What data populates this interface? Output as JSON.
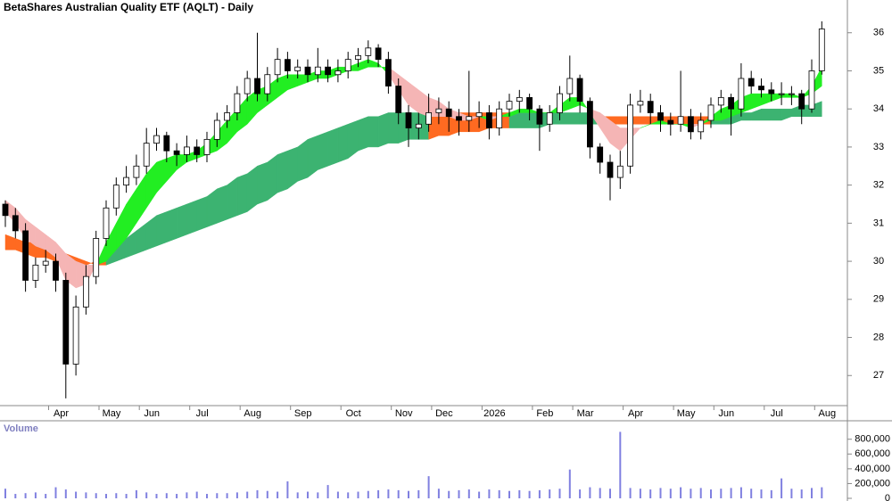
{
  "chart_data": {
    "type": "candlestick",
    "title": "BetaShares Australian Quality ETF (AQLT) - Daily",
    "volume_title": "Volume",
    "categories": [
      null,
      null,
      null,
      null,
      null,
      "Apr",
      null,
      null,
      null,
      null,
      "May",
      null,
      null,
      null,
      "Jun",
      null,
      null,
      null,
      null,
      "Jul",
      null,
      null,
      null,
      null,
      "Aug",
      null,
      null,
      null,
      null,
      "Sep",
      null,
      null,
      null,
      null,
      "Oct",
      null,
      null,
      null,
      null,
      "Nov",
      null,
      null,
      null,
      "Dec",
      null,
      null,
      null,
      null,
      "2026",
      null,
      null,
      null,
      null,
      "Feb",
      null,
      null,
      null,
      "Mar",
      null,
      null,
      null,
      null,
      "Apr",
      null,
      null,
      null,
      null,
      "May",
      null,
      null,
      null,
      "Jun",
      null,
      null,
      null,
      null,
      "Jul",
      null,
      null,
      null,
      null,
      "Aug"
    ],
    "ohlc": [
      [
        31.5,
        31.6,
        30.9,
        31.2
      ],
      [
        31.2,
        31.4,
        30.6,
        30.8
      ],
      [
        30.8,
        31.0,
        29.2,
        29.5
      ],
      [
        29.5,
        30.1,
        29.3,
        29.9
      ],
      [
        29.9,
        30.3,
        29.7,
        30.0
      ],
      [
        30.0,
        30.2,
        29.2,
        29.5
      ],
      [
        29.5,
        29.7,
        26.4,
        27.3
      ],
      [
        27.3,
        29.1,
        27.0,
        28.8
      ],
      [
        28.8,
        29.9,
        28.6,
        29.6
      ],
      [
        29.6,
        30.8,
        29.4,
        30.6
      ],
      [
        30.6,
        31.6,
        30.4,
        31.4
      ],
      [
        31.4,
        32.2,
        31.2,
        32.0
      ],
      [
        32.0,
        32.5,
        31.8,
        32.2
      ],
      [
        32.2,
        32.8,
        32.0,
        32.5
      ],
      [
        32.5,
        33.5,
        32.3,
        33.1
      ],
      [
        33.1,
        33.5,
        32.9,
        33.3
      ],
      [
        33.3,
        33.4,
        32.6,
        32.9
      ],
      [
        32.9,
        33.1,
        32.5,
        32.8
      ],
      [
        32.8,
        33.3,
        32.6,
        33.0
      ],
      [
        33.0,
        33.2,
        32.6,
        32.8
      ],
      [
        32.8,
        33.4,
        32.6,
        33.2
      ],
      [
        33.2,
        33.9,
        33.0,
        33.7
      ],
      [
        33.7,
        34.1,
        33.5,
        33.9
      ],
      [
        33.9,
        34.6,
        33.7,
        34.4
      ],
      [
        34.4,
        35.0,
        34.2,
        34.8
      ],
      [
        34.8,
        36.0,
        34.2,
        34.4
      ],
      [
        34.4,
        35.1,
        34.2,
        34.9
      ],
      [
        34.9,
        35.6,
        34.7,
        35.3
      ],
      [
        35.3,
        35.5,
        34.8,
        35.0
      ],
      [
        35.0,
        35.3,
        34.8,
        35.1
      ],
      [
        35.1,
        35.3,
        34.7,
        34.9
      ],
      [
        34.9,
        35.6,
        34.7,
        35.1
      ],
      [
        35.1,
        35.3,
        34.7,
        34.9
      ],
      [
        34.9,
        35.3,
        34.7,
        35.0
      ],
      [
        35.0,
        35.5,
        34.8,
        35.3
      ],
      [
        35.3,
        35.6,
        35.1,
        35.4
      ],
      [
        35.4,
        35.8,
        35.2,
        35.6
      ],
      [
        35.6,
        35.7,
        35.1,
        35.3
      ],
      [
        35.3,
        35.5,
        34.4,
        34.6
      ],
      [
        34.6,
        34.8,
        33.6,
        33.9
      ],
      [
        33.9,
        34.1,
        33.0,
        33.5
      ],
      [
        33.5,
        33.9,
        33.2,
        33.6
      ],
      [
        33.6,
        34.4,
        33.4,
        33.9
      ],
      [
        33.9,
        34.3,
        33.6,
        34.0
      ],
      [
        34.0,
        34.2,
        33.4,
        33.8
      ],
      [
        33.8,
        34.0,
        33.3,
        33.7
      ],
      [
        33.7,
        35.0,
        33.4,
        33.8
      ],
      [
        33.8,
        34.2,
        33.5,
        33.9
      ],
      [
        33.9,
        34.1,
        33.2,
        33.5
      ],
      [
        33.5,
        34.2,
        33.3,
        34.0
      ],
      [
        34.0,
        34.4,
        33.8,
        34.2
      ],
      [
        34.2,
        34.5,
        33.9,
        34.3
      ],
      [
        34.3,
        34.4,
        33.7,
        34.0
      ],
      [
        34.0,
        34.1,
        32.9,
        33.6
      ],
      [
        33.6,
        34.1,
        33.4,
        33.9
      ],
      [
        33.9,
        34.6,
        33.7,
        34.4
      ],
      [
        34.4,
        35.4,
        34.2,
        34.8
      ],
      [
        34.8,
        34.9,
        33.9,
        34.2
      ],
      [
        34.2,
        34.3,
        32.7,
        33.0
      ],
      [
        33.0,
        33.1,
        32.3,
        32.6
      ],
      [
        32.6,
        32.8,
        31.6,
        32.2
      ],
      [
        32.2,
        32.9,
        31.9,
        32.5
      ],
      [
        32.5,
        34.4,
        32.3,
        34.1
      ],
      [
        34.1,
        34.5,
        33.9,
        34.2
      ],
      [
        34.2,
        34.4,
        33.6,
        33.9
      ],
      [
        33.9,
        34.1,
        33.4,
        33.7
      ],
      [
        33.7,
        33.9,
        33.3,
        33.6
      ],
      [
        33.6,
        35.0,
        33.4,
        33.8
      ],
      [
        33.8,
        34.0,
        33.2,
        33.4
      ],
      [
        33.4,
        33.9,
        33.2,
        33.7
      ],
      [
        33.7,
        34.3,
        33.5,
        34.1
      ],
      [
        34.1,
        34.5,
        33.9,
        34.3
      ],
      [
        34.3,
        34.4,
        33.3,
        34.0
      ],
      [
        34.0,
        35.2,
        33.8,
        34.8
      ],
      [
        34.8,
        35.0,
        34.4,
        34.6
      ],
      [
        34.6,
        34.8,
        34.3,
        34.5
      ],
      [
        34.5,
        34.7,
        34.2,
        34.4
      ],
      [
        34.4,
        34.7,
        34.1,
        34.4
      ],
      [
        34.4,
        34.6,
        34.1,
        34.4
      ],
      [
        34.4,
        34.5,
        33.6,
        34.0
      ],
      [
        34.0,
        35.3,
        33.9,
        35.0
      ],
      [
        35.0,
        36.3,
        34.9,
        36.1
      ]
    ],
    "fast_band": [
      [
        31.3,
        31.6
      ],
      [
        31.0,
        31.4
      ],
      [
        30.6,
        31.1
      ],
      [
        30.4,
        30.9
      ],
      [
        30.3,
        30.7
      ],
      [
        30.1,
        30.5
      ],
      [
        29.5,
        30.2
      ],
      [
        29.3,
        30.0
      ],
      [
        29.4,
        29.9
      ],
      [
        29.9,
        29.9
      ],
      [
        30.5,
        30.0
      ],
      [
        31.0,
        30.3
      ],
      [
        31.5,
        30.6
      ],
      [
        31.9,
        31.0
      ],
      [
        32.3,
        31.4
      ],
      [
        32.6,
        31.8
      ],
      [
        32.7,
        32.1
      ],
      [
        32.8,
        32.4
      ],
      [
        32.8,
        32.6
      ],
      [
        32.9,
        32.7
      ],
      [
        33.1,
        32.8
      ],
      [
        33.4,
        32.9
      ],
      [
        33.7,
        33.1
      ],
      [
        34.0,
        33.4
      ],
      [
        34.3,
        33.6
      ],
      [
        34.5,
        33.9
      ],
      [
        34.6,
        34.1
      ],
      [
        34.8,
        34.3
      ],
      [
        34.9,
        34.5
      ],
      [
        34.9,
        34.6
      ],
      [
        34.9,
        34.7
      ],
      [
        35.0,
        34.8
      ],
      [
        35.0,
        34.8
      ],
      [
        35.1,
        34.9
      ],
      [
        35.1,
        35.0
      ],
      [
        35.2,
        35.0
      ],
      [
        35.3,
        35.1
      ],
      [
        35.2,
        35.1
      ],
      [
        34.9,
        35.1
      ],
      [
        34.5,
        34.9
      ],
      [
        34.1,
        34.7
      ],
      [
        33.9,
        34.5
      ],
      [
        33.8,
        34.3
      ],
      [
        33.8,
        34.2
      ],
      [
        33.8,
        34.0
      ],
      [
        33.7,
        33.9
      ],
      [
        33.7,
        33.8
      ],
      [
        33.8,
        33.8
      ],
      [
        33.7,
        33.8
      ],
      [
        33.8,
        33.8
      ],
      [
        33.9,
        33.8
      ],
      [
        34.0,
        33.9
      ],
      [
        34.0,
        33.9
      ],
      [
        33.9,
        33.9
      ],
      [
        33.9,
        33.9
      ],
      [
        34.1,
        33.9
      ],
      [
        34.3,
        34.0
      ],
      [
        34.3,
        34.1
      ],
      [
        33.9,
        34.0
      ],
      [
        33.5,
        33.9
      ],
      [
        33.1,
        33.7
      ],
      [
        32.9,
        33.5
      ],
      [
        33.2,
        33.5
      ],
      [
        33.5,
        33.5
      ],
      [
        33.6,
        33.6
      ],
      [
        33.7,
        33.6
      ],
      [
        33.6,
        33.6
      ],
      [
        33.6,
        33.6
      ],
      [
        33.5,
        33.6
      ],
      [
        33.6,
        33.6
      ],
      [
        33.8,
        33.7
      ],
      [
        34.0,
        33.7
      ],
      [
        34.1,
        33.8
      ],
      [
        34.3,
        33.9
      ],
      [
        34.4,
        34.0
      ],
      [
        34.4,
        34.1
      ],
      [
        34.4,
        34.2
      ],
      [
        34.4,
        34.3
      ],
      [
        34.4,
        34.3
      ],
      [
        34.3,
        34.3
      ],
      [
        34.6,
        34.4
      ],
      [
        35.1,
        34.6
      ]
    ],
    "slow_band": [
      [
        30.3,
        30.7
      ],
      [
        30.3,
        30.6
      ],
      [
        30.2,
        30.5
      ],
      [
        30.1,
        30.5
      ],
      [
        30.1,
        30.4
      ],
      [
        30.0,
        30.3
      ],
      [
        29.9,
        30.2
      ],
      [
        29.9,
        30.1
      ],
      [
        29.9,
        30.0
      ],
      [
        30.0,
        29.9
      ],
      [
        30.2,
        29.9
      ],
      [
        30.4,
        30.0
      ],
      [
        30.6,
        30.1
      ],
      [
        30.8,
        30.2
      ],
      [
        31.0,
        30.3
      ],
      [
        31.2,
        30.4
      ],
      [
        31.3,
        30.5
      ],
      [
        31.4,
        30.6
      ],
      [
        31.5,
        30.7
      ],
      [
        31.6,
        30.8
      ],
      [
        31.7,
        30.9
      ],
      [
        31.9,
        31.0
      ],
      [
        32.0,
        31.1
      ],
      [
        32.2,
        31.2
      ],
      [
        32.3,
        31.3
      ],
      [
        32.5,
        31.5
      ],
      [
        32.6,
        31.6
      ],
      [
        32.8,
        31.8
      ],
      [
        32.9,
        31.9
      ],
      [
        33.0,
        32.1
      ],
      [
        33.2,
        32.2
      ],
      [
        33.3,
        32.4
      ],
      [
        33.4,
        32.5
      ],
      [
        33.5,
        32.6
      ],
      [
        33.6,
        32.7
      ],
      [
        33.7,
        32.9
      ],
      [
        33.8,
        33.0
      ],
      [
        33.8,
        33.0
      ],
      [
        33.9,
        33.1
      ],
      [
        33.9,
        33.1
      ],
      [
        33.9,
        33.2
      ],
      [
        33.9,
        33.2
      ],
      [
        33.9,
        33.2
      ],
      [
        33.9,
        33.3
      ],
      [
        33.9,
        33.3
      ],
      [
        33.9,
        33.4
      ],
      [
        33.9,
        33.4
      ],
      [
        33.9,
        33.4
      ],
      [
        33.9,
        33.5
      ],
      [
        33.9,
        33.5
      ],
      [
        33.9,
        33.5
      ],
      [
        33.9,
        33.5
      ],
      [
        33.9,
        33.5
      ],
      [
        33.9,
        33.5
      ],
      [
        33.9,
        33.6
      ],
      [
        33.9,
        33.6
      ],
      [
        33.9,
        33.6
      ],
      [
        33.9,
        33.6
      ],
      [
        33.9,
        33.6
      ],
      [
        33.8,
        33.6
      ],
      [
        33.8,
        33.6
      ],
      [
        33.8,
        33.6
      ],
      [
        33.8,
        33.6
      ],
      [
        33.8,
        33.6
      ],
      [
        33.8,
        33.6
      ],
      [
        33.8,
        33.6
      ],
      [
        33.8,
        33.6
      ],
      [
        33.8,
        33.6
      ],
      [
        33.8,
        33.6
      ],
      [
        33.8,
        33.6
      ],
      [
        33.8,
        33.6
      ],
      [
        33.9,
        33.6
      ],
      [
        33.9,
        33.6
      ],
      [
        33.9,
        33.7
      ],
      [
        33.9,
        33.7
      ],
      [
        34.0,
        33.7
      ],
      [
        34.0,
        33.7
      ],
      [
        34.0,
        33.7
      ],
      [
        34.0,
        33.8
      ],
      [
        34.1,
        33.8
      ],
      [
        34.1,
        33.8
      ],
      [
        34.2,
        33.8
      ]
    ],
    "volume": [
      130000,
      60000,
      70000,
      80000,
      60000,
      150000,
      120000,
      90000,
      80000,
      70000,
      60000,
      70000,
      60000,
      110000,
      80000,
      60000,
      70000,
      60000,
      80000,
      90000,
      60000,
      70000,
      70000,
      80000,
      90000,
      110000,
      100000,
      90000,
      230000,
      80000,
      90000,
      80000,
      180000,
      90000,
      80000,
      90000,
      100000,
      110000,
      120000,
      110000,
      100000,
      110000,
      300000,
      130000,
      100000,
      110000,
      120000,
      90000,
      120000,
      110000,
      100000,
      110000,
      100000,
      110000,
      120000,
      130000,
      390000,
      120000,
      150000,
      140000,
      130000,
      900000,
      140000,
      130000,
      120000,
      140000,
      130000,
      150000,
      130000,
      140000,
      120000,
      130000,
      140000,
      150000,
      130000,
      120000,
      110000,
      270000,
      130000,
      120000,
      140000,
      150000
    ],
    "ylim": [
      26.21,
      36.86
    ],
    "yticks": [
      27,
      28,
      29,
      30,
      31,
      32,
      33,
      34,
      35,
      36
    ],
    "y2lim": [
      0,
      1050000
    ],
    "y2ticks": [
      0,
      {
        "value": 200000,
        "label": "200,000"
      },
      {
        "value": 400000,
        "label": "400,000"
      },
      {
        "value": 600000,
        "label": "600,000"
      },
      {
        "value": 800000,
        "label": "800,000"
      }
    ],
    "colors": {
      "up": "#ffffff",
      "down": "#000000",
      "fast_up": "#22ee22",
      "fast_down": "#f5b5b5",
      "slow_up": "#3cb371",
      "slow_down": "#ff6a21",
      "volume": "#8080e0"
    }
  }
}
